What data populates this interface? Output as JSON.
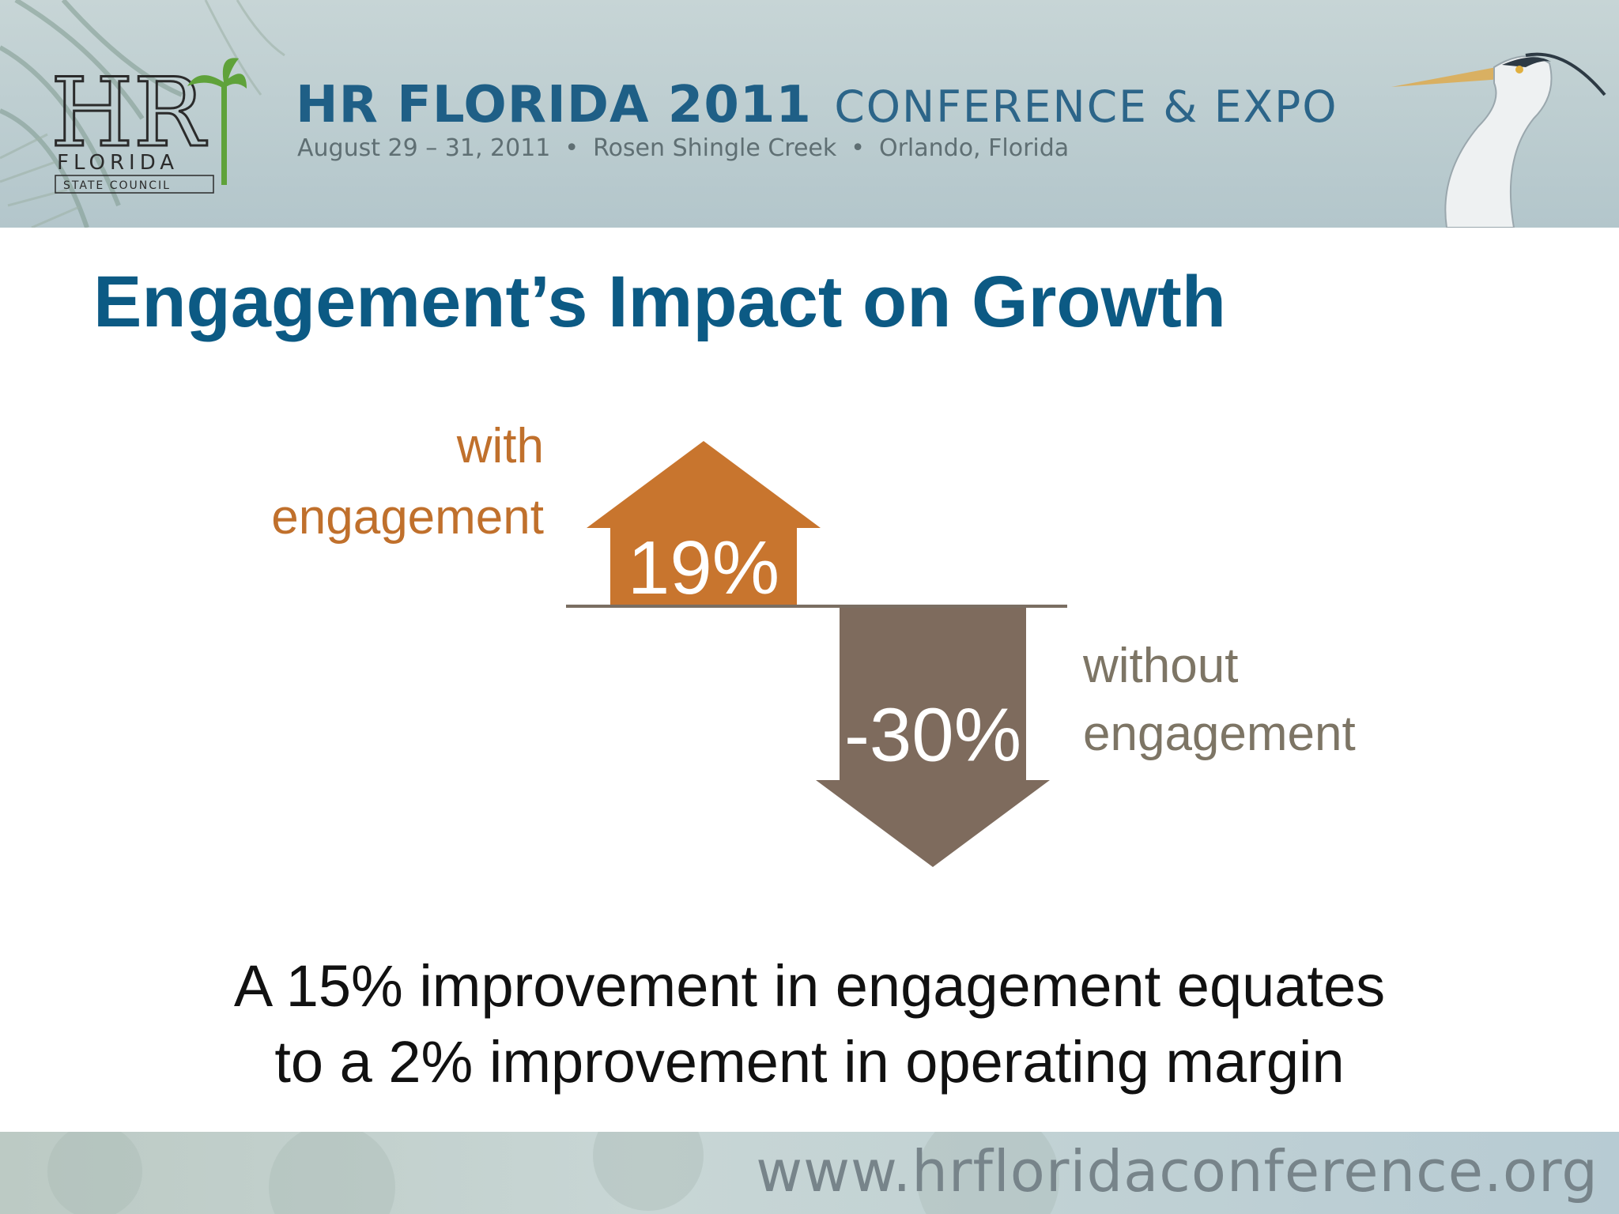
{
  "header": {
    "logo_letters": "HR",
    "logo_state": "FLORIDA",
    "logo_council": "STATE COUNCIL",
    "conference_name": "HR FLORIDA 2011",
    "conference_sub": "CONFERENCE & EXPO",
    "dates": "August 29 – 31, 2011",
    "venue": "Rosen Shingle Creek",
    "city": "Orlando, Florida",
    "separator": "•"
  },
  "slide": {
    "title": "Engagement’s Impact on Growth"
  },
  "chart_data": {
    "type": "bar",
    "categories": [
      "with engagement",
      "without engagement"
    ],
    "values": [
      19,
      -30
    ],
    "value_labels": [
      "19%",
      "-30%"
    ],
    "label_lines": [
      [
        "with",
        "engagement"
      ],
      [
        "without",
        "engagement"
      ]
    ],
    "colors": [
      "#c8752e",
      "#7e6b5d"
    ],
    "grid": false,
    "legend": "none"
  },
  "statement": {
    "line1": "A 15% improvement in engagement equates",
    "line2": "to a 2% improvement in operating margin"
  },
  "footer": {
    "url": "www.hrfloridaconference.org"
  }
}
